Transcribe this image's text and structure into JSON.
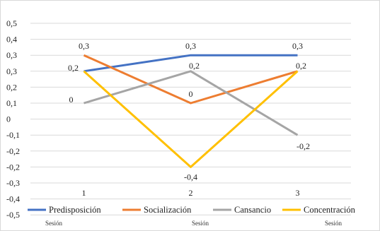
{
  "chart_data": {
    "type": "line",
    "categories": [
      "1",
      "2",
      "3"
    ],
    "ylim": [
      -0.5,
      0.5
    ],
    "ystep": 0.1,
    "ytick_labels": [
      "0,5",
      "0,4",
      "0,3",
      "0,3",
      "0,2",
      "0,1",
      "0",
      "-0,1",
      "-0,2",
      "-0,2",
      "-0,3",
      "-0,4",
      "-0,5"
    ],
    "grid": true,
    "legend_position": "bottom",
    "series": [
      {
        "name": "Predisposición",
        "color": "#4472c4",
        "values": [
          0.2,
          0.3,
          0.3
        ],
        "labels": [
          "0,2",
          "0,3",
          "0,3"
        ]
      },
      {
        "name": "Socialización",
        "color": "#ed7d31",
        "values": [
          0.3,
          0.0,
          0.2
        ],
        "labels": [
          "0,3",
          "0",
          "0,2"
        ]
      },
      {
        "name": "Cansancio",
        "color": "#a5a5a5",
        "values": [
          0.0,
          0.2,
          -0.2
        ],
        "labels": [
          "0",
          "0,2",
          "-0,2"
        ]
      },
      {
        "name": "Concentración",
        "color": "#ffc000",
        "values": [
          0.2,
          -0.4,
          0.2
        ],
        "labels": [
          "0,2",
          "-0,4",
          "0,2"
        ]
      }
    ],
    "session_labels": [
      "Sesión",
      "Sesión",
      "Sesión"
    ]
  }
}
